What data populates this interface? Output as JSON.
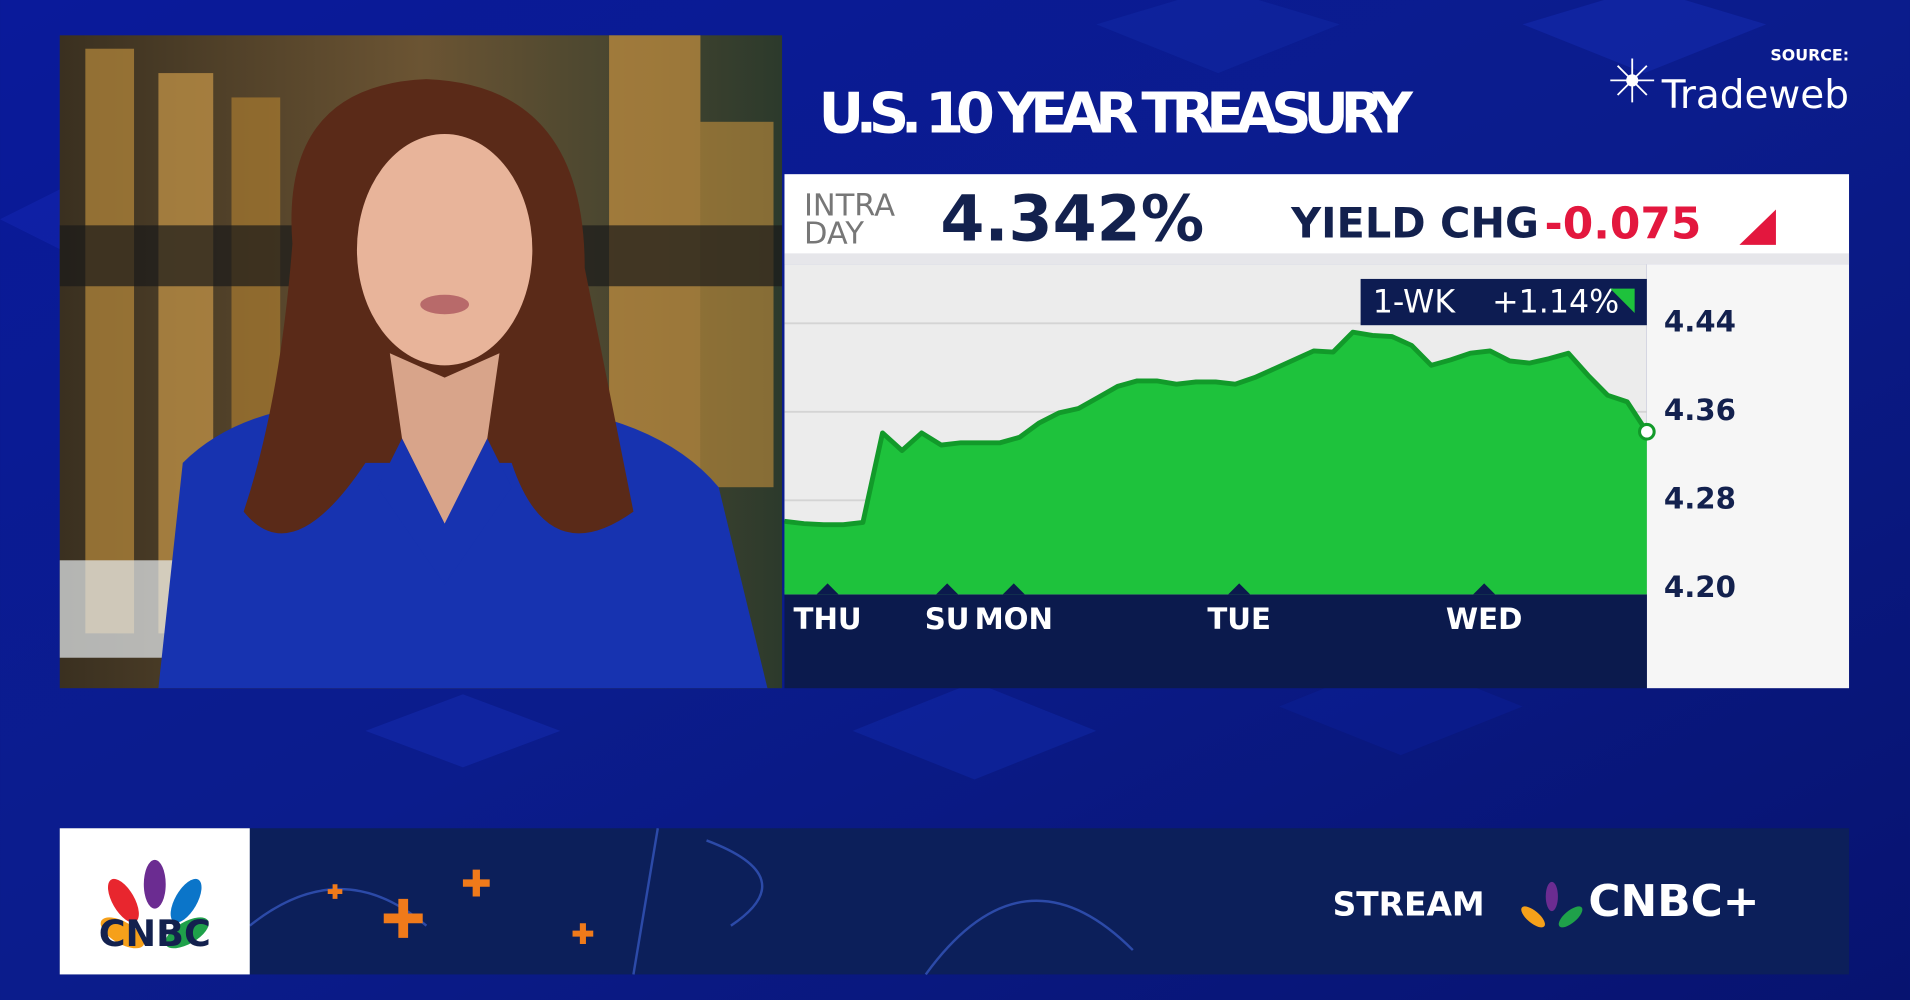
{
  "header": {
    "title": "U.S. 10 YEAR TREASURY",
    "source_label": "SOURCE:",
    "source": "Tradeweb",
    "intra": "INTRA",
    "day": "DAY",
    "yield": "4.342%",
    "change_label": "YIELD CHG",
    "change": "-0.075",
    "badge_label": "1-WK",
    "badge_value": "+1.14%"
  },
  "banner": {
    "logo": "CNBC",
    "stream": "STREAM",
    "brand": "CNBC+"
  },
  "chart_data": {
    "type": "area",
    "values": [
      4.261,
      4.259,
      4.258,
      4.258,
      4.26,
      4.341,
      4.325,
      4.341,
      4.33,
      4.332,
      4.332,
      4.332,
      4.337,
      4.35,
      4.359,
      4.363,
      4.373,
      4.383,
      4.388,
      4.388,
      4.385,
      4.387,
      4.387,
      4.385,
      4.391,
      4.399,
      4.407,
      4.415,
      4.414,
      4.432,
      4.429,
      4.428,
      4.42,
      4.402,
      4.407,
      4.413,
      4.415,
      4.406,
      4.404,
      4.408,
      4.413,
      4.393,
      4.375,
      4.369,
      4.342
    ],
    "color": "#1ec23c",
    "xlim": [
      0,
      44
    ],
    "xticks": [
      {
        "value": 2.2,
        "label": "THU"
      },
      {
        "value": 8.3,
        "label": "SU"
      },
      {
        "value": 11.7,
        "label": "MON"
      },
      {
        "value": 23.2,
        "label": "TUE"
      },
      {
        "value": 35.7,
        "label": "WED"
      }
    ],
    "ylim": [
      4.195,
      4.49
    ],
    "yticks": [
      4.44,
      4.36,
      4.28,
      {
        "value": 4.2,
        "label": "4.20"
      }
    ],
    "grid": true
  }
}
